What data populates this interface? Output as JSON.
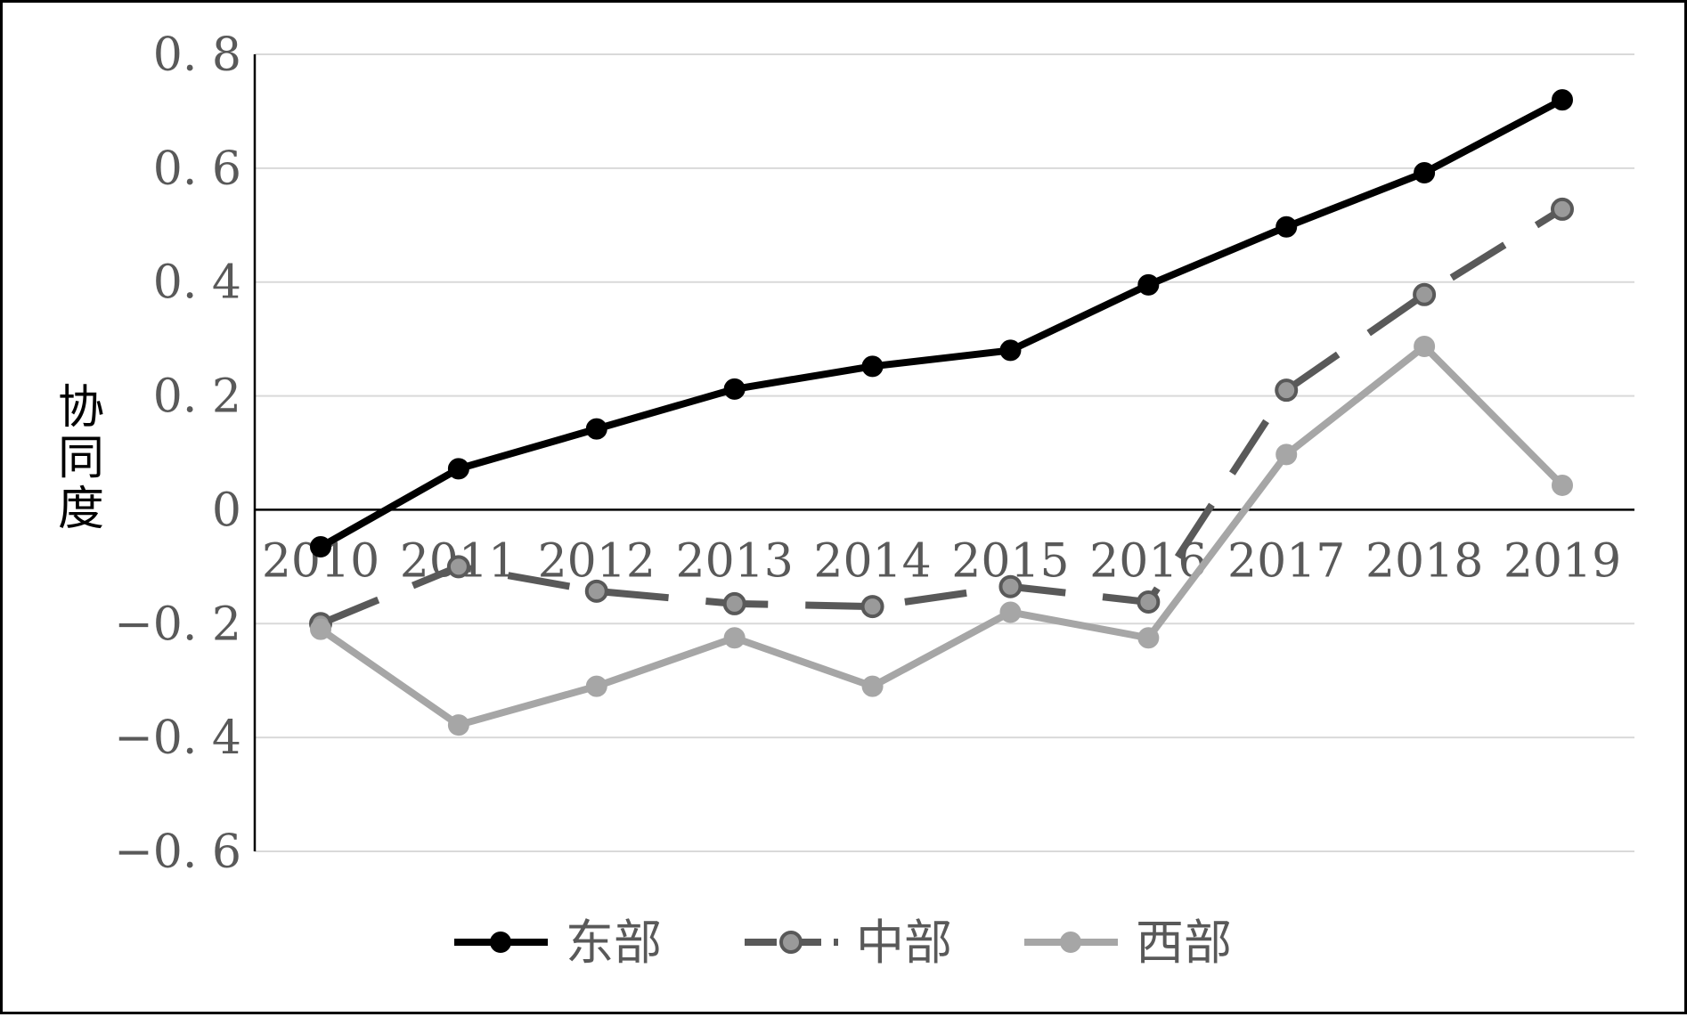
{
  "chart_data": {
    "type": "line",
    "title": "",
    "ylabel": "协同度",
    "xlabel": "",
    "categories": [
      "2010",
      "2011",
      "2012",
      "2013",
      "2014",
      "2015",
      "2016",
      "2017",
      "2018",
      "2019"
    ],
    "ylim": [
      -0.6,
      0.8
    ],
    "yticks": [
      0.8,
      0.6,
      0.4,
      0.2,
      0,
      -0.2,
      -0.4,
      -0.6
    ],
    "ytick_labels": [
      "0. 8",
      "0. 6",
      "0. 4",
      "0. 2",
      "0",
      "−0. 2",
      "−0. 4",
      "−0. 6"
    ],
    "grid": true,
    "legend_position": "bottom",
    "series": [
      {
        "name": "东部",
        "color": "#000000",
        "line_style": "solid",
        "values": [
          -0.065,
          0.072,
          0.142,
          0.212,
          0.252,
          0.28,
          0.395,
          0.497,
          0.592,
          0.72
        ]
      },
      {
        "name": "中部",
        "color": "#595959",
        "line_style": "dashed",
        "values": [
          -0.2,
          -0.1,
          -0.143,
          -0.165,
          -0.17,
          -0.135,
          -0.162,
          0.21,
          0.378,
          0.528
        ]
      },
      {
        "name": "西部",
        "color": "#a6a6a6",
        "line_style": "solid",
        "values": [
          -0.21,
          -0.378,
          -0.31,
          -0.225,
          -0.31,
          -0.18,
          -0.225,
          0.097,
          0.287,
          0.043
        ]
      }
    ]
  }
}
